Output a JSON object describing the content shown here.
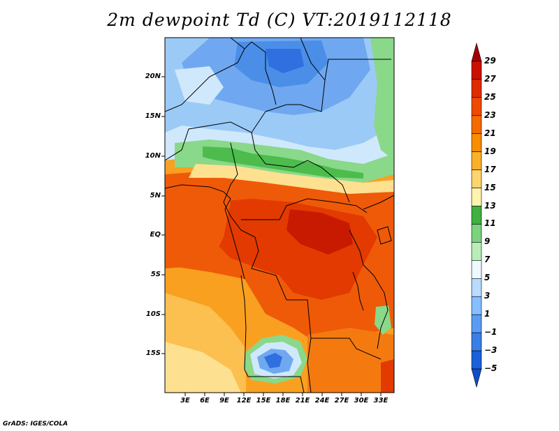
{
  "title": "2m dewpoint Td (C) VT:2019112118",
  "credit": "GrADS: IGES/COLA",
  "lat_labels": [
    "20N",
    "15N",
    "10N",
    "5N",
    "EQ",
    "5S",
    "10S",
    "15S"
  ],
  "lon_labels": [
    "3E",
    "6E",
    "9E",
    "12E",
    "15E",
    "18E",
    "21E",
    "24E",
    "27E",
    "30E",
    "33E"
  ],
  "colorbar": {
    "levels": [
      "29",
      "27",
      "25",
      "23",
      "21",
      "19",
      "17",
      "15",
      "13",
      "11",
      "9",
      "7",
      "5",
      "3",
      "1",
      "−1",
      "−3",
      "−5"
    ],
    "colors": [
      "#a50000",
      "#cc1000",
      "#e02a00",
      "#ef4a00",
      "#f46b00",
      "#f88d00",
      "#fbb02a",
      "#fdd56e",
      "#fff3b0",
      "#40b040",
      "#7bd37b",
      "#b8edb8",
      "#eef8ff",
      "#b7dcff",
      "#86bfff",
      "#5a9cf5",
      "#3a7ee8",
      "#1a60d8",
      "#0e4cc8"
    ]
  },
  "map_colors": {
    "c_m3": "#2f6fe0",
    "c_m1": "#4a8ee8",
    "c_1": "#6fa8f0",
    "c_3": "#9ccaf7",
    "c_5": "#cfe8fb",
    "c_9": "#8ad88a",
    "c_11": "#4cbc4c",
    "c_15": "#fde090",
    "c_17": "#fbc050",
    "c_19": "#f9a020",
    "c_21": "#f47a10",
    "c_23": "#ef5a08",
    "c_25": "#e23a00",
    "c_27": "#c81a00"
  }
}
